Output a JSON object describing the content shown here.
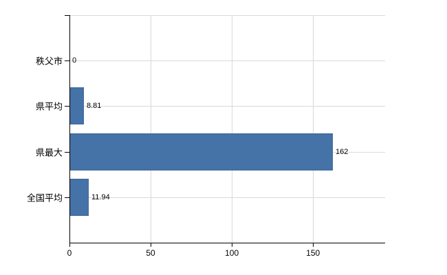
{
  "chart_data": {
    "type": "bar",
    "orientation": "horizontal",
    "title": "",
    "xlabel": "",
    "ylabel": "",
    "categories": [
      "秩父市",
      "県平均",
      "県最大",
      "全国平均"
    ],
    "values": [
      0,
      8.81,
      162,
      11.94
    ],
    "value_labels": [
      "0",
      "8.81",
      "162",
      "11.94"
    ],
    "xlim": [
      0,
      194.4
    ],
    "xticks": [
      0,
      50,
      100,
      150
    ],
    "xtick_labels": [
      "0",
      "50",
      "100",
      "150"
    ],
    "grid": true,
    "legend": false,
    "colors": {
      "bar_fill": "#4572a7",
      "bar_border": "#3f6699",
      "gridline": "#d9d9d9",
      "axis": "#000000",
      "text": "#000000",
      "background": "#ffffff"
    }
  }
}
